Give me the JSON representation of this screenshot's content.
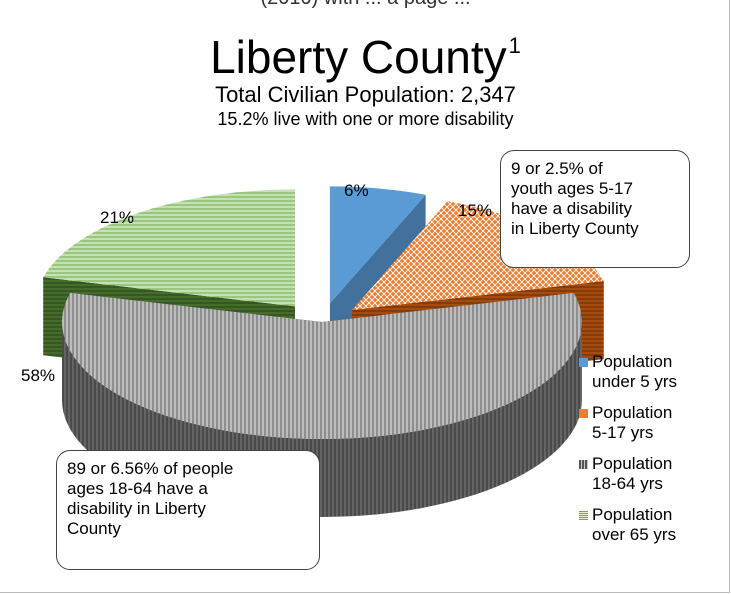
{
  "header_clip": "(2010) with ... a page ...",
  "chart_data": {
    "type": "pie",
    "title": "Liberty County",
    "title_superscript": "1",
    "subtitle_1": "Total Civilian Population: 2,347",
    "subtitle_2": "15.2% live with one or more disability",
    "categories": [
      "Population under 5 yrs",
      "Population 5-17 yrs",
      "Population 18-64 yrs",
      "Population over 65 yrs"
    ],
    "values": [
      6,
      15,
      58,
      21
    ],
    "data_labels": [
      "6%",
      "15%",
      "58%",
      "21%"
    ],
    "colors": [
      "#5b9bd5",
      "#ed7d31",
      "#a5a5a5",
      "#a9d18e"
    ],
    "legend_position": "right",
    "annotations": [
      "9 or 2.5% of youth ages 5-17 have a disability in Liberty County",
      "89 or 6.56% of people ages 18-64 have a disability in Liberty County"
    ],
    "annotation_lines": [
      [
        "9 or 2.5% of",
        "youth ages 5-17",
        "have a disability",
        "in Liberty County"
      ],
      [
        "89 or 6.56% of people",
        "ages 18-64 have a",
        "disability in Liberty",
        "County"
      ]
    ],
    "legend": [
      [
        "Population",
        "under 5 yrs"
      ],
      [
        "Population",
        "5-17 yrs"
      ],
      [
        "Population",
        "18-64 yrs"
      ],
      [
        "Population",
        "over 65 yrs"
      ]
    ]
  }
}
